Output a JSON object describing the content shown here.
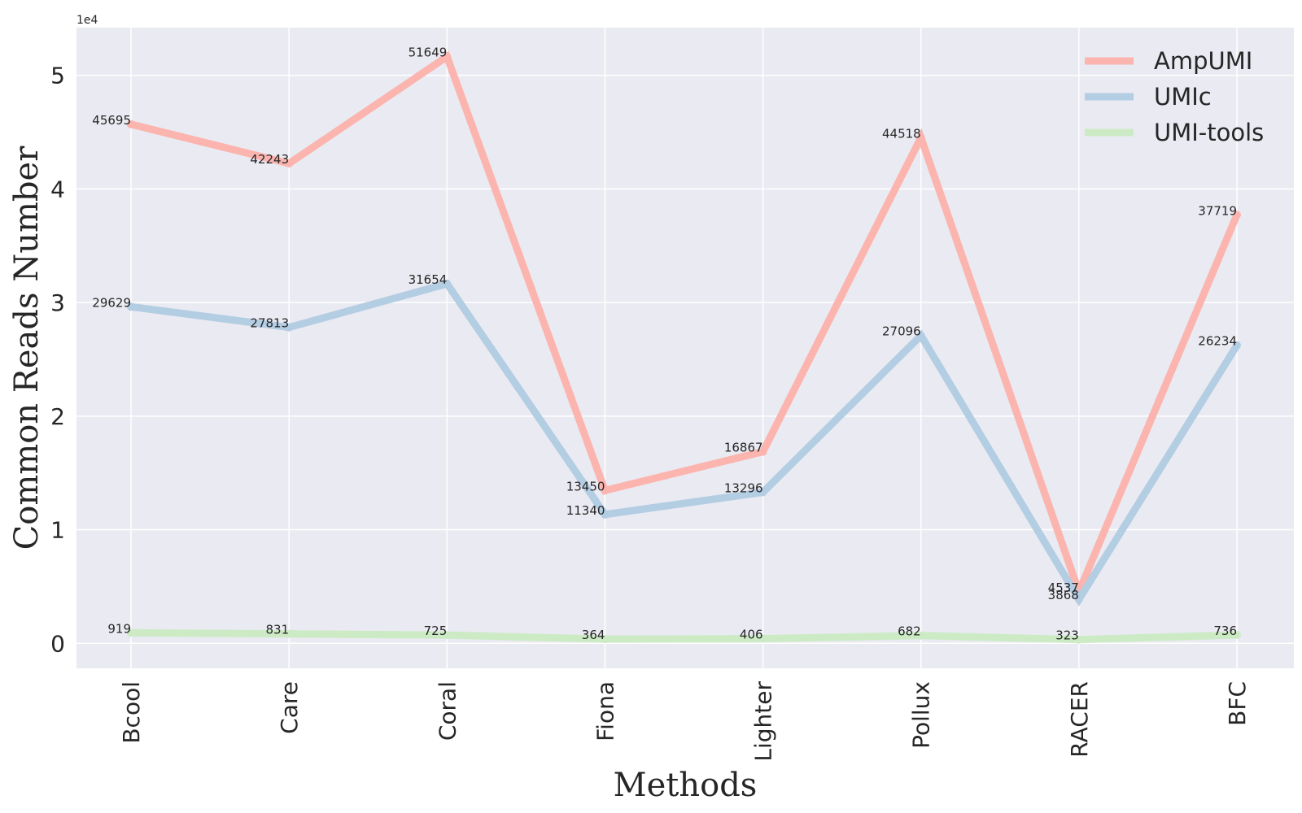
{
  "chart_data": {
    "type": "line",
    "title": "",
    "xlabel": "Methods",
    "ylabel": "Common Reads Number",
    "y_multiplier": "1e4",
    "categories": [
      "Bcool",
      "Care",
      "Coral",
      "Fiona",
      "Lighter",
      "Pollux",
      "RACER",
      "BFC"
    ],
    "ylim": [
      -2200,
      54200
    ],
    "y_ticks": [
      0,
      10000,
      20000,
      30000,
      40000,
      50000
    ],
    "y_tick_labels": [
      "0",
      "1",
      "2",
      "3",
      "4",
      "5"
    ],
    "grid": true,
    "legend_position": "top-right",
    "series": [
      {
        "name": "AmpUMI",
        "color": "#fbb4ae",
        "values": [
          45695,
          42243,
          51649,
          13450,
          16867,
          44518,
          4537,
          37719
        ],
        "labels": [
          "45695",
          "42243",
          "51649",
          "13450",
          "16867",
          "44518",
          "4537",
          "37719"
        ]
      },
      {
        "name": "UMIc",
        "color": "#b3cde3",
        "values": [
          29629,
          27813,
          31654,
          11340,
          13296,
          27096,
          3868,
          26234
        ],
        "labels": [
          "29629",
          "27813",
          "31654",
          "11340",
          "13296",
          "27096",
          "3868",
          "26234"
        ]
      },
      {
        "name": "UMI-tools",
        "color": "#ccebc5",
        "values": [
          919,
          831,
          725,
          364,
          406,
          682,
          323,
          736
        ],
        "labels": [
          "919",
          "831",
          "725",
          "364",
          "406",
          "682",
          "323",
          "736"
        ]
      }
    ]
  }
}
